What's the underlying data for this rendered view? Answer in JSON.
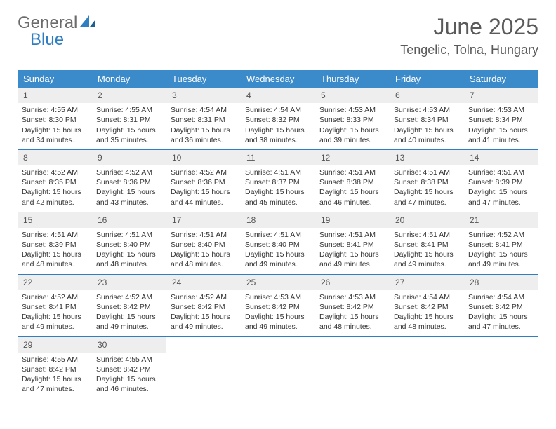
{
  "logo": {
    "general": "General",
    "blue": "Blue"
  },
  "title": "June 2025",
  "location": "Tengelic, Tolna, Hungary",
  "colors": {
    "header_bg": "#3b8aca",
    "header_text": "#ffffff",
    "week_border": "#2f7ec2",
    "daynum_bg": "#eeeeee",
    "text": "#333333",
    "title_text": "#5a5a5a"
  },
  "day_headers": [
    "Sunday",
    "Monday",
    "Tuesday",
    "Wednesday",
    "Thursday",
    "Friday",
    "Saturday"
  ],
  "weeks": [
    [
      {
        "n": "1",
        "sr": "Sunrise: 4:55 AM",
        "ss": "Sunset: 8:30 PM",
        "d1": "Daylight: 15 hours",
        "d2": "and 34 minutes."
      },
      {
        "n": "2",
        "sr": "Sunrise: 4:55 AM",
        "ss": "Sunset: 8:31 PM",
        "d1": "Daylight: 15 hours",
        "d2": "and 35 minutes."
      },
      {
        "n": "3",
        "sr": "Sunrise: 4:54 AM",
        "ss": "Sunset: 8:31 PM",
        "d1": "Daylight: 15 hours",
        "d2": "and 36 minutes."
      },
      {
        "n": "4",
        "sr": "Sunrise: 4:54 AM",
        "ss": "Sunset: 8:32 PM",
        "d1": "Daylight: 15 hours",
        "d2": "and 38 minutes."
      },
      {
        "n": "5",
        "sr": "Sunrise: 4:53 AM",
        "ss": "Sunset: 8:33 PM",
        "d1": "Daylight: 15 hours",
        "d2": "and 39 minutes."
      },
      {
        "n": "6",
        "sr": "Sunrise: 4:53 AM",
        "ss": "Sunset: 8:34 PM",
        "d1": "Daylight: 15 hours",
        "d2": "and 40 minutes."
      },
      {
        "n": "7",
        "sr": "Sunrise: 4:53 AM",
        "ss": "Sunset: 8:34 PM",
        "d1": "Daylight: 15 hours",
        "d2": "and 41 minutes."
      }
    ],
    [
      {
        "n": "8",
        "sr": "Sunrise: 4:52 AM",
        "ss": "Sunset: 8:35 PM",
        "d1": "Daylight: 15 hours",
        "d2": "and 42 minutes."
      },
      {
        "n": "9",
        "sr": "Sunrise: 4:52 AM",
        "ss": "Sunset: 8:36 PM",
        "d1": "Daylight: 15 hours",
        "d2": "and 43 minutes."
      },
      {
        "n": "10",
        "sr": "Sunrise: 4:52 AM",
        "ss": "Sunset: 8:36 PM",
        "d1": "Daylight: 15 hours",
        "d2": "and 44 minutes."
      },
      {
        "n": "11",
        "sr": "Sunrise: 4:51 AM",
        "ss": "Sunset: 8:37 PM",
        "d1": "Daylight: 15 hours",
        "d2": "and 45 minutes."
      },
      {
        "n": "12",
        "sr": "Sunrise: 4:51 AM",
        "ss": "Sunset: 8:38 PM",
        "d1": "Daylight: 15 hours",
        "d2": "and 46 minutes."
      },
      {
        "n": "13",
        "sr": "Sunrise: 4:51 AM",
        "ss": "Sunset: 8:38 PM",
        "d1": "Daylight: 15 hours",
        "d2": "and 47 minutes."
      },
      {
        "n": "14",
        "sr": "Sunrise: 4:51 AM",
        "ss": "Sunset: 8:39 PM",
        "d1": "Daylight: 15 hours",
        "d2": "and 47 minutes."
      }
    ],
    [
      {
        "n": "15",
        "sr": "Sunrise: 4:51 AM",
        "ss": "Sunset: 8:39 PM",
        "d1": "Daylight: 15 hours",
        "d2": "and 48 minutes."
      },
      {
        "n": "16",
        "sr": "Sunrise: 4:51 AM",
        "ss": "Sunset: 8:40 PM",
        "d1": "Daylight: 15 hours",
        "d2": "and 48 minutes."
      },
      {
        "n": "17",
        "sr": "Sunrise: 4:51 AM",
        "ss": "Sunset: 8:40 PM",
        "d1": "Daylight: 15 hours",
        "d2": "and 48 minutes."
      },
      {
        "n": "18",
        "sr": "Sunrise: 4:51 AM",
        "ss": "Sunset: 8:40 PM",
        "d1": "Daylight: 15 hours",
        "d2": "and 49 minutes."
      },
      {
        "n": "19",
        "sr": "Sunrise: 4:51 AM",
        "ss": "Sunset: 8:41 PM",
        "d1": "Daylight: 15 hours",
        "d2": "and 49 minutes."
      },
      {
        "n": "20",
        "sr": "Sunrise: 4:51 AM",
        "ss": "Sunset: 8:41 PM",
        "d1": "Daylight: 15 hours",
        "d2": "and 49 minutes."
      },
      {
        "n": "21",
        "sr": "Sunrise: 4:52 AM",
        "ss": "Sunset: 8:41 PM",
        "d1": "Daylight: 15 hours",
        "d2": "and 49 minutes."
      }
    ],
    [
      {
        "n": "22",
        "sr": "Sunrise: 4:52 AM",
        "ss": "Sunset: 8:41 PM",
        "d1": "Daylight: 15 hours",
        "d2": "and 49 minutes."
      },
      {
        "n": "23",
        "sr": "Sunrise: 4:52 AM",
        "ss": "Sunset: 8:42 PM",
        "d1": "Daylight: 15 hours",
        "d2": "and 49 minutes."
      },
      {
        "n": "24",
        "sr": "Sunrise: 4:52 AM",
        "ss": "Sunset: 8:42 PM",
        "d1": "Daylight: 15 hours",
        "d2": "and 49 minutes."
      },
      {
        "n": "25",
        "sr": "Sunrise: 4:53 AM",
        "ss": "Sunset: 8:42 PM",
        "d1": "Daylight: 15 hours",
        "d2": "and 49 minutes."
      },
      {
        "n": "26",
        "sr": "Sunrise: 4:53 AM",
        "ss": "Sunset: 8:42 PM",
        "d1": "Daylight: 15 hours",
        "d2": "and 48 minutes."
      },
      {
        "n": "27",
        "sr": "Sunrise: 4:54 AM",
        "ss": "Sunset: 8:42 PM",
        "d1": "Daylight: 15 hours",
        "d2": "and 48 minutes."
      },
      {
        "n": "28",
        "sr": "Sunrise: 4:54 AM",
        "ss": "Sunset: 8:42 PM",
        "d1": "Daylight: 15 hours",
        "d2": "and 47 minutes."
      }
    ],
    [
      {
        "n": "29",
        "sr": "Sunrise: 4:55 AM",
        "ss": "Sunset: 8:42 PM",
        "d1": "Daylight: 15 hours",
        "d2": "and 47 minutes."
      },
      {
        "n": "30",
        "sr": "Sunrise: 4:55 AM",
        "ss": "Sunset: 8:42 PM",
        "d1": "Daylight: 15 hours",
        "d2": "and 46 minutes."
      },
      {
        "empty": true
      },
      {
        "empty": true
      },
      {
        "empty": true
      },
      {
        "empty": true
      },
      {
        "empty": true
      }
    ]
  ]
}
